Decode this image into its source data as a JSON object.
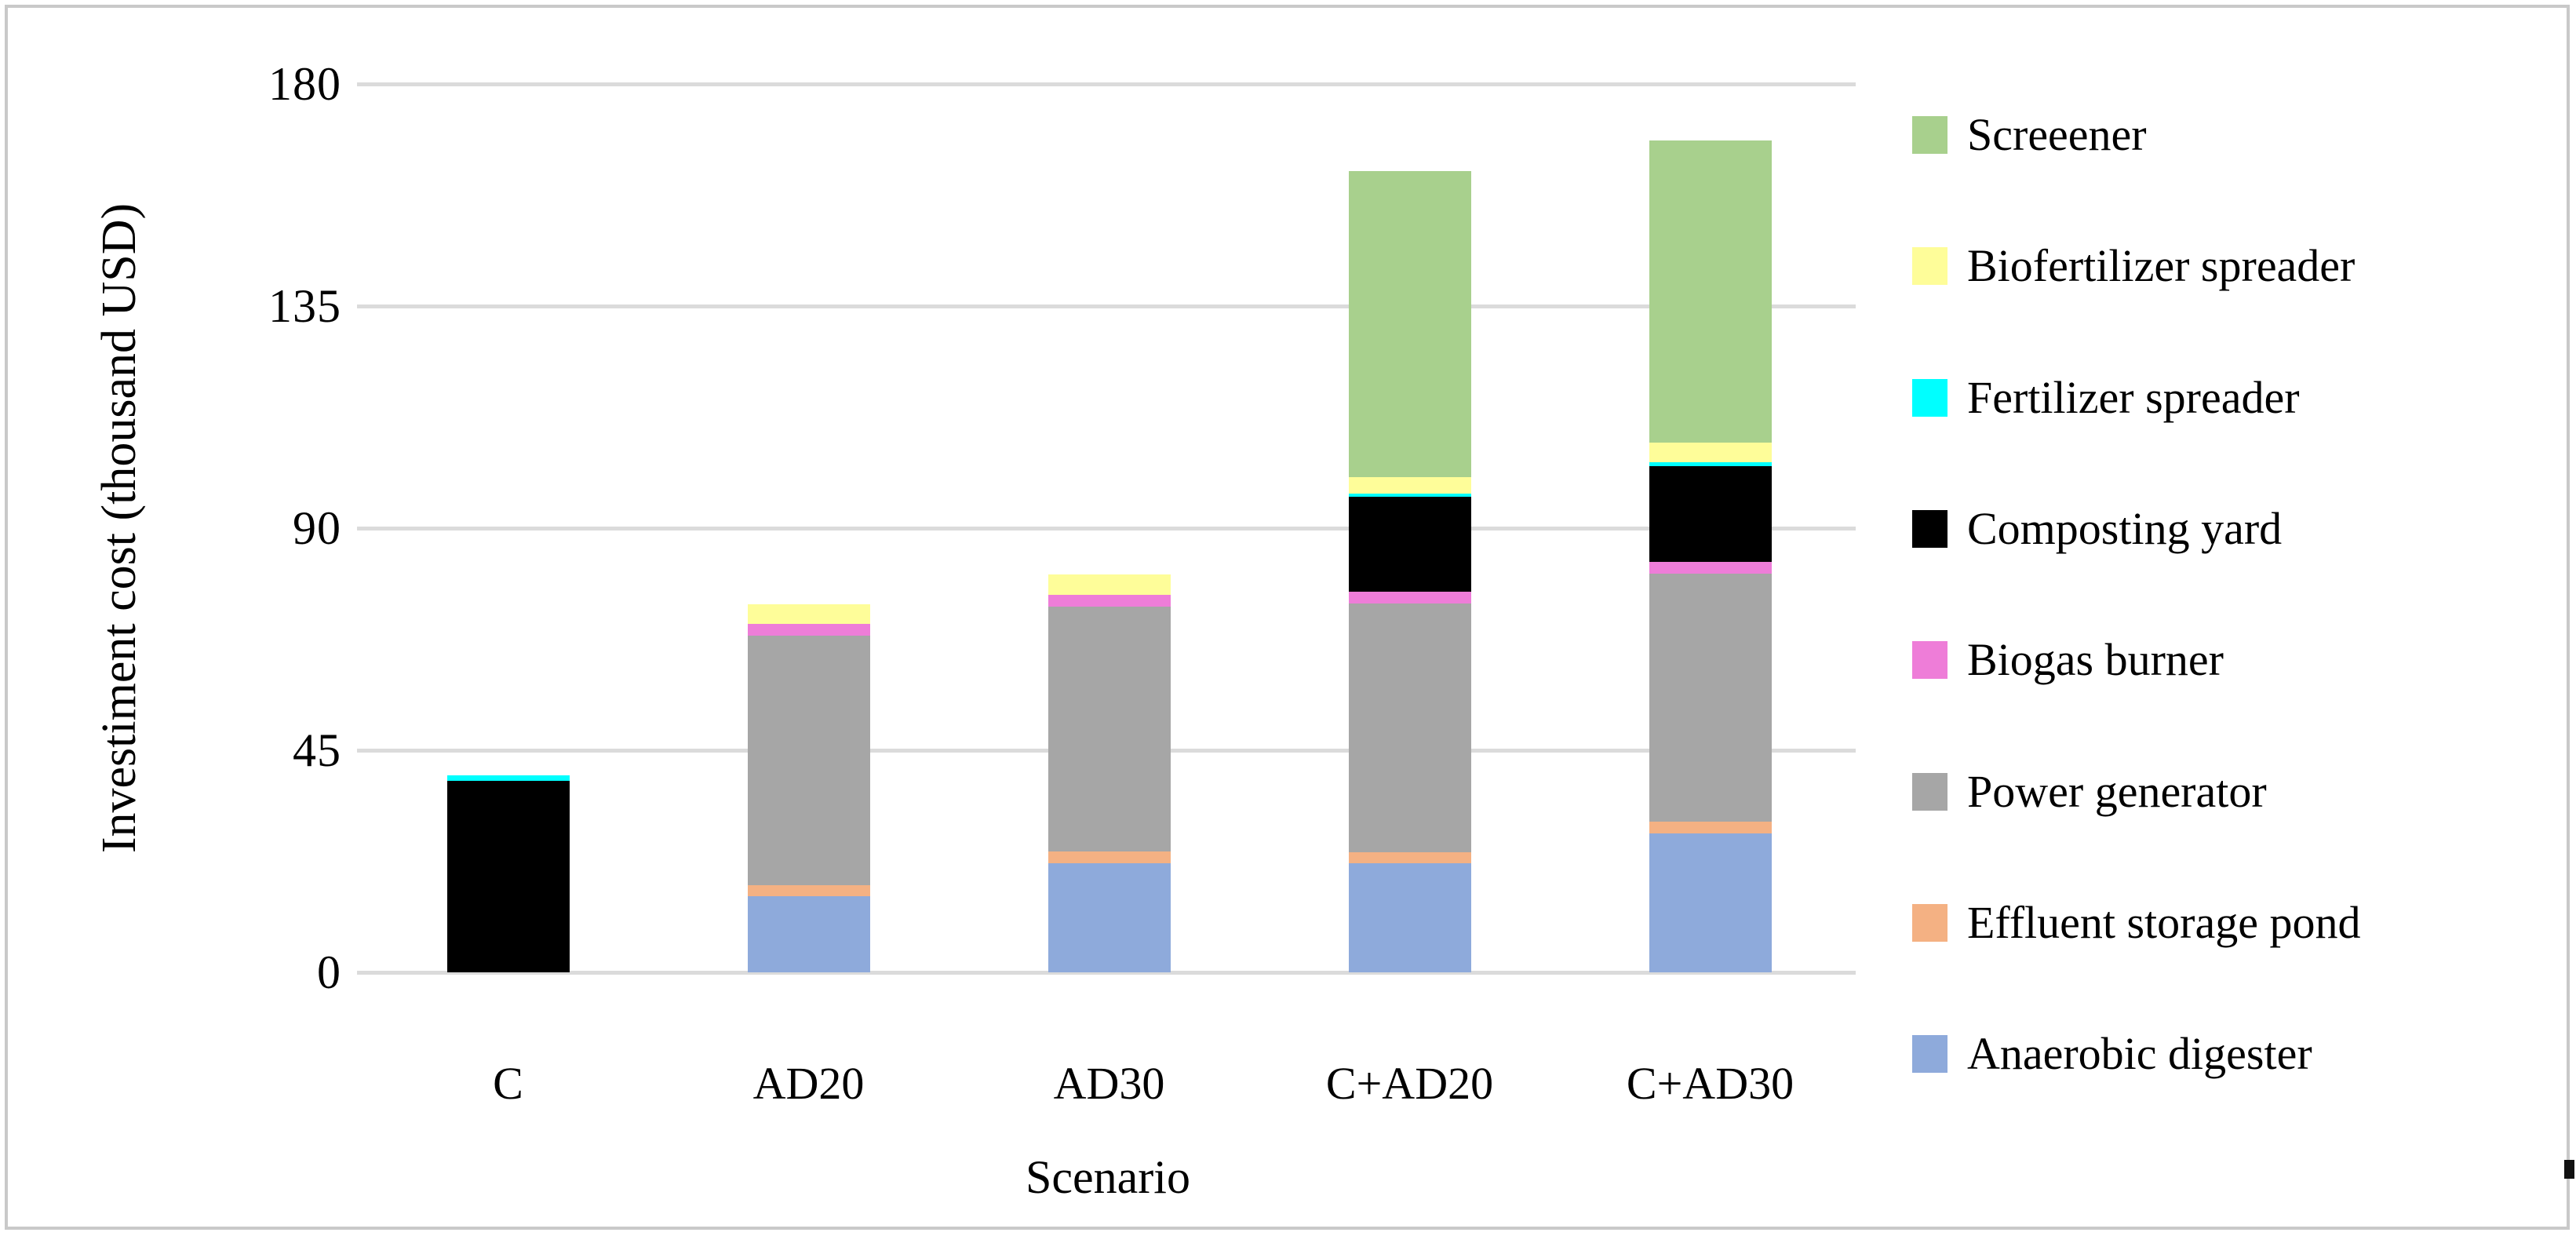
{
  "figure": {
    "y_axis": {
      "title": "Investiment cost (thousand USD)",
      "tick_labels": [
        "180",
        "135",
        "90",
        "45",
        "0"
      ]
    },
    "x_axis": {
      "title": "Scenario"
    }
  },
  "chart_data": {
    "type": "bar",
    "stacked": true,
    "xlabel": "Scenario",
    "ylabel": "Investiment cost (thousand USD)",
    "ylim": [
      0,
      180
    ],
    "yticks": [
      0,
      45,
      90,
      135,
      180
    ],
    "grid": true,
    "legend_position": "right",
    "categories": [
      "C",
      "AD20",
      "AD30",
      "C+AD20",
      "C+AD30"
    ],
    "series": [
      {
        "name": "Anaerobic digester",
        "color": "#8EAADB",
        "values": [
          0,
          15.4,
          22.1,
          22.1,
          28.1
        ]
      },
      {
        "name": "Effluent storage pond",
        "color": "#F4B183",
        "values": [
          0,
          2.3,
          2.4,
          2.2,
          2.4
        ]
      },
      {
        "name": "Power generator",
        "color": "#A6A6A6",
        "values": [
          0,
          50.5,
          49.6,
          50.4,
          50.3
        ]
      },
      {
        "name": "Biogas burner",
        "color": "#EE7DD8",
        "values": [
          0,
          2.4,
          2.4,
          2.4,
          2.4
        ]
      },
      {
        "name": "Composting yard",
        "color": "#000000",
        "values": [
          38.8,
          0,
          0,
          19.2,
          19.3
        ]
      },
      {
        "name": "Fertilizer spreader",
        "color": "#00FFFF",
        "values": [
          1.1,
          0,
          0,
          0.7,
          0.8
        ]
      },
      {
        "name": "Biofertilizer spreader",
        "color": "#FEFD99",
        "values": [
          0,
          4.0,
          4.1,
          3.3,
          4.0
        ]
      },
      {
        "name": "Screeener",
        "color": "#A8D08D",
        "values": [
          0,
          0,
          0,
          62.0,
          61.2
        ]
      }
    ],
    "totals": [
      39.9,
      74.6,
      80.6,
      162.3,
      168.5
    ],
    "legend_top_to_bottom": [
      "Screeener",
      "Biofertilizer spreader",
      "Fertilizer spreader",
      "Composting yard",
      "Biogas burner",
      "Power generator",
      "Effluent storage pond",
      "Anaerobic digester"
    ],
    "gridline_color": "#DBDBDB"
  }
}
